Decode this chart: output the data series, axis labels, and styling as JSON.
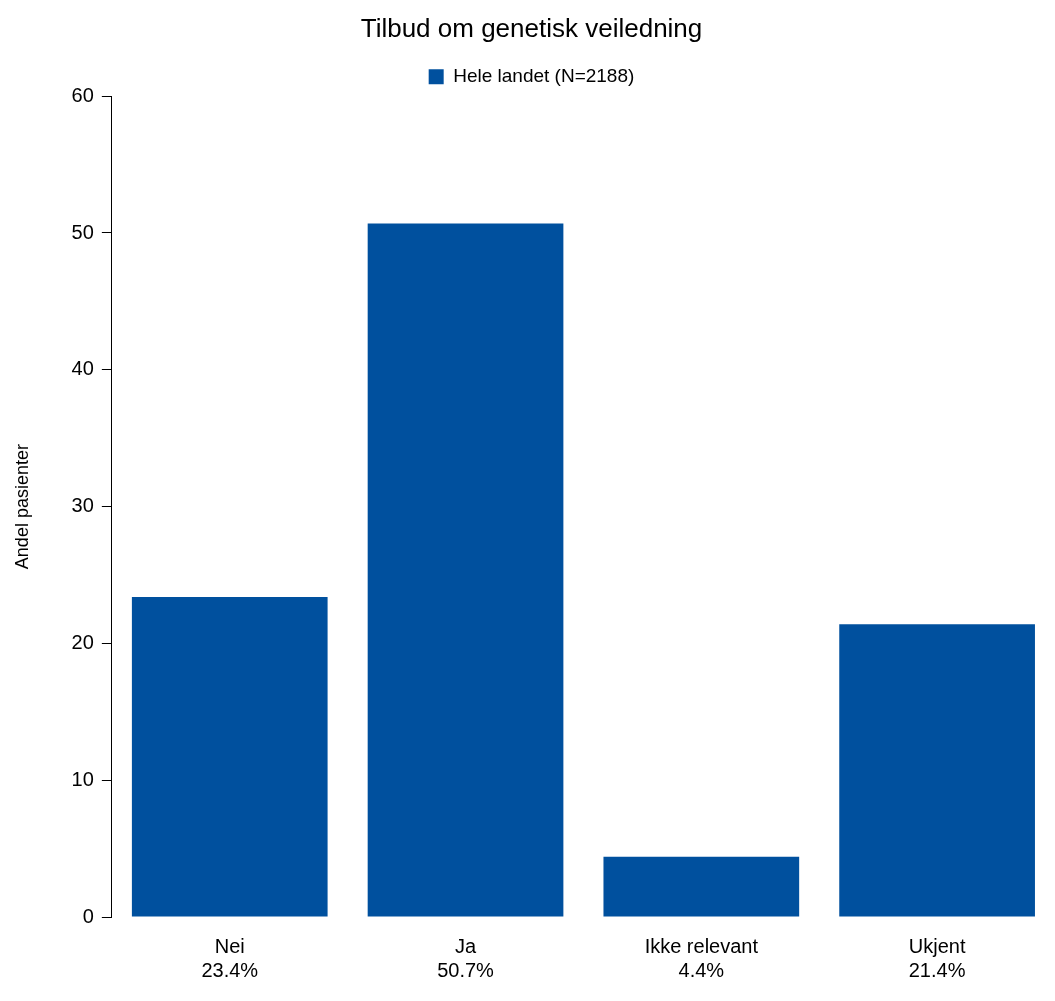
{
  "chart_data": {
    "type": "bar",
    "title": "Tilbud om genetisk veiledning",
    "ylabel": "Andel pasienter",
    "categories": [
      "Nei",
      "Ja",
      "Ikke relevant",
      "Ukjent"
    ],
    "series": [
      {
        "name": "Hele landet (N=2188)",
        "color": "#00509e",
        "values": [
          23.4,
          50.7,
          4.4,
          21.4
        ],
        "value_labels": [
          "23.4%",
          "50.7%",
          "4.4%",
          "21.4%"
        ]
      }
    ],
    "ylim": [
      0,
      60
    ],
    "yticks": [
      0,
      10,
      20,
      30,
      40,
      50,
      60
    ],
    "grid": false,
    "legend": "top"
  }
}
